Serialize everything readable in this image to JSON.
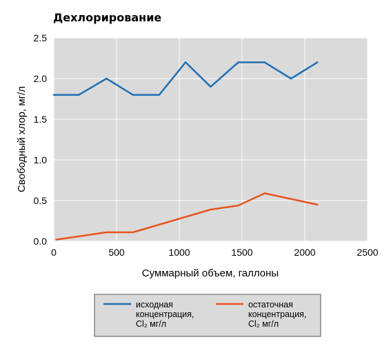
{
  "chart_data": {
    "type": "line",
    "title": "Дехлорирование",
    "xlabel": "Суммарный объем, галлоны",
    "ylabel": "Свободный хлор, мг/л",
    "xlim": [
      0,
      2500
    ],
    "ylim": [
      0,
      2.5
    ],
    "xticks": [
      "0",
      "500",
      "1000",
      "1500",
      "2000",
      "2500"
    ],
    "yticks": [
      "0.0",
      "0.5",
      "1.0",
      "1.5",
      "2.0",
      "2.5"
    ],
    "grid": true,
    "legend_position": "bottom",
    "series": [
      {
        "name_lines": [
          "исходная",
          "концентрация,",
          "Cl₂ мг/л"
        ],
        "color": "#1f6fb5",
        "x": [
          0,
          200,
          420,
          630,
          840,
          1050,
          1250,
          1470,
          1680,
          1890,
          2100
        ],
        "y": [
          1.8,
          1.8,
          2.0,
          1.8,
          1.8,
          2.2,
          1.9,
          2.2,
          2.2,
          2.0,
          2.2
        ]
      },
      {
        "name_lines": [
          "остаточная",
          "концентрация,",
          "Cl₂ мг/л"
        ],
        "color": "#e8531e",
        "x": [
          20,
          420,
          630,
          1250,
          1470,
          1680,
          2100
        ],
        "y": [
          0.02,
          0.11,
          0.11,
          0.39,
          0.44,
          0.59,
          0.45
        ]
      }
    ]
  }
}
